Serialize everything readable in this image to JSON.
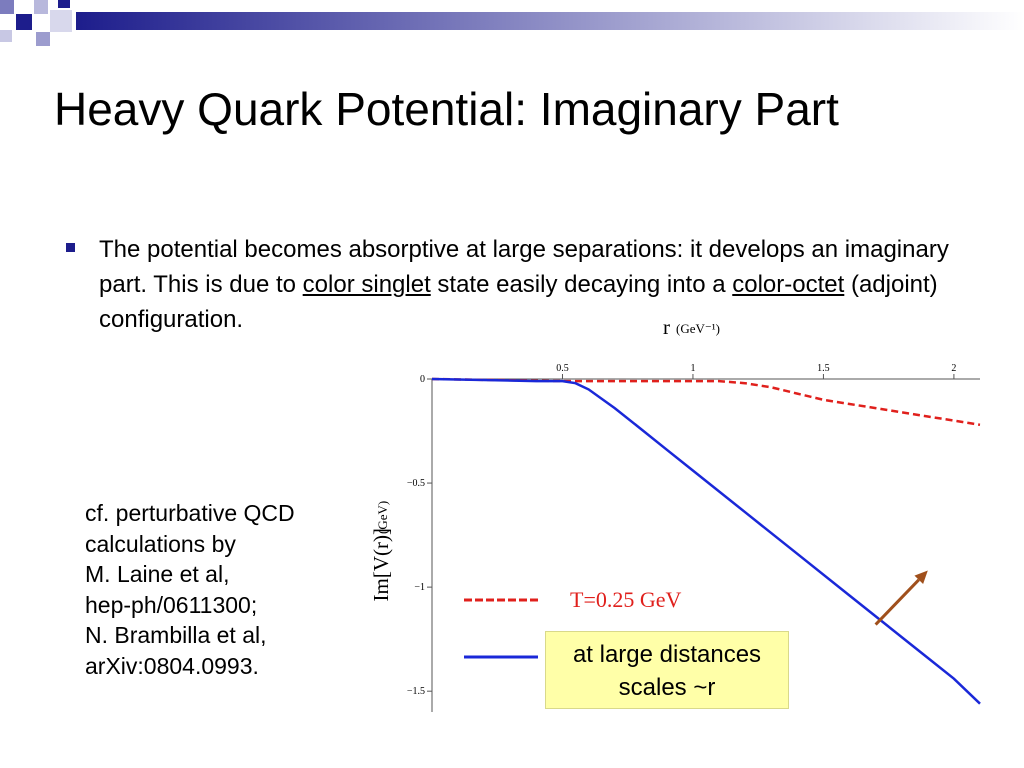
{
  "slide": {
    "title": "Heavy Quark Potential: Imaginary Part",
    "bullet": {
      "t1": "The potential becomes absorptive at large separations: it develops an imaginary part. This is due to ",
      "u1": "color singlet",
      "t2": " state easily decaying into a ",
      "u2": "color-octet",
      "t3": " (adjoint) configuration."
    },
    "reference_lines": [
      "cf. perturbative QCD",
      "calculations by",
      "M. Laine et al,",
      "hep-ph/0611300;",
      "N. Brambilla et al,",
      "arXiv:0804.0993."
    ],
    "callout": {
      "line1": "at large distances",
      "line2": "scales ~r"
    },
    "colors": {
      "dashed_series": "#e0201c",
      "solid_series": "#1a28d8",
      "arrow": "#a0501c",
      "callout_bg": "#ffffa8",
      "bullet": "#1d1d8c"
    }
  },
  "chart_data": {
    "type": "line",
    "xlabel": "r",
    "xunit": "(GeV⁻¹)",
    "ylabel": "Im[V(r)]",
    "yunit": "(GeV)",
    "xlim": [
      0.0,
      2.1
    ],
    "ylim": [
      -1.6,
      0.0
    ],
    "xaxis_position": "top",
    "xticks": [
      0.5,
      1,
      1.5,
      2
    ],
    "xtick_labels": [
      "0.5",
      "1",
      "1.5",
      "2"
    ],
    "yticks": [
      0,
      -0.5,
      -1,
      -1.5
    ],
    "ytick_labels": [
      "0",
      "−0.5",
      "−1",
      "−1.5"
    ],
    "grid": false,
    "legend": [
      {
        "key": "dashed",
        "style": "dashed",
        "label": "T=0.25 GeV"
      },
      {
        "key": "solid",
        "style": "solid",
        "label": ""
      }
    ],
    "series": [
      {
        "key": "dashed",
        "style": "dashed",
        "x": [
          0.0,
          0.5,
          1.0,
          1.1,
          1.2,
          1.3,
          1.4,
          1.5,
          1.6,
          1.7,
          1.8,
          1.9,
          2.0,
          2.1
        ],
        "y": [
          0.0,
          -0.01,
          -0.01,
          -0.01,
          -0.02,
          -0.04,
          -0.07,
          -0.1,
          -0.12,
          -0.14,
          -0.16,
          -0.18,
          -0.2,
          -0.22
        ]
      },
      {
        "key": "solid",
        "style": "solid",
        "x": [
          0.0,
          0.4,
          0.5,
          0.55,
          0.6,
          0.7,
          0.8,
          0.9,
          1.0,
          1.2,
          1.4,
          1.6,
          1.8,
          1.9,
          2.0,
          2.1
        ],
        "y": [
          0.0,
          -0.01,
          -0.01,
          -0.02,
          -0.05,
          -0.14,
          -0.24,
          -0.34,
          -0.44,
          -0.64,
          -0.84,
          -1.04,
          -1.24,
          -1.34,
          -1.44,
          -1.56
        ]
      }
    ],
    "arrow": {
      "from": [
        1.7,
        -1.18
      ],
      "to": [
        1.9,
        -0.92
      ]
    }
  }
}
